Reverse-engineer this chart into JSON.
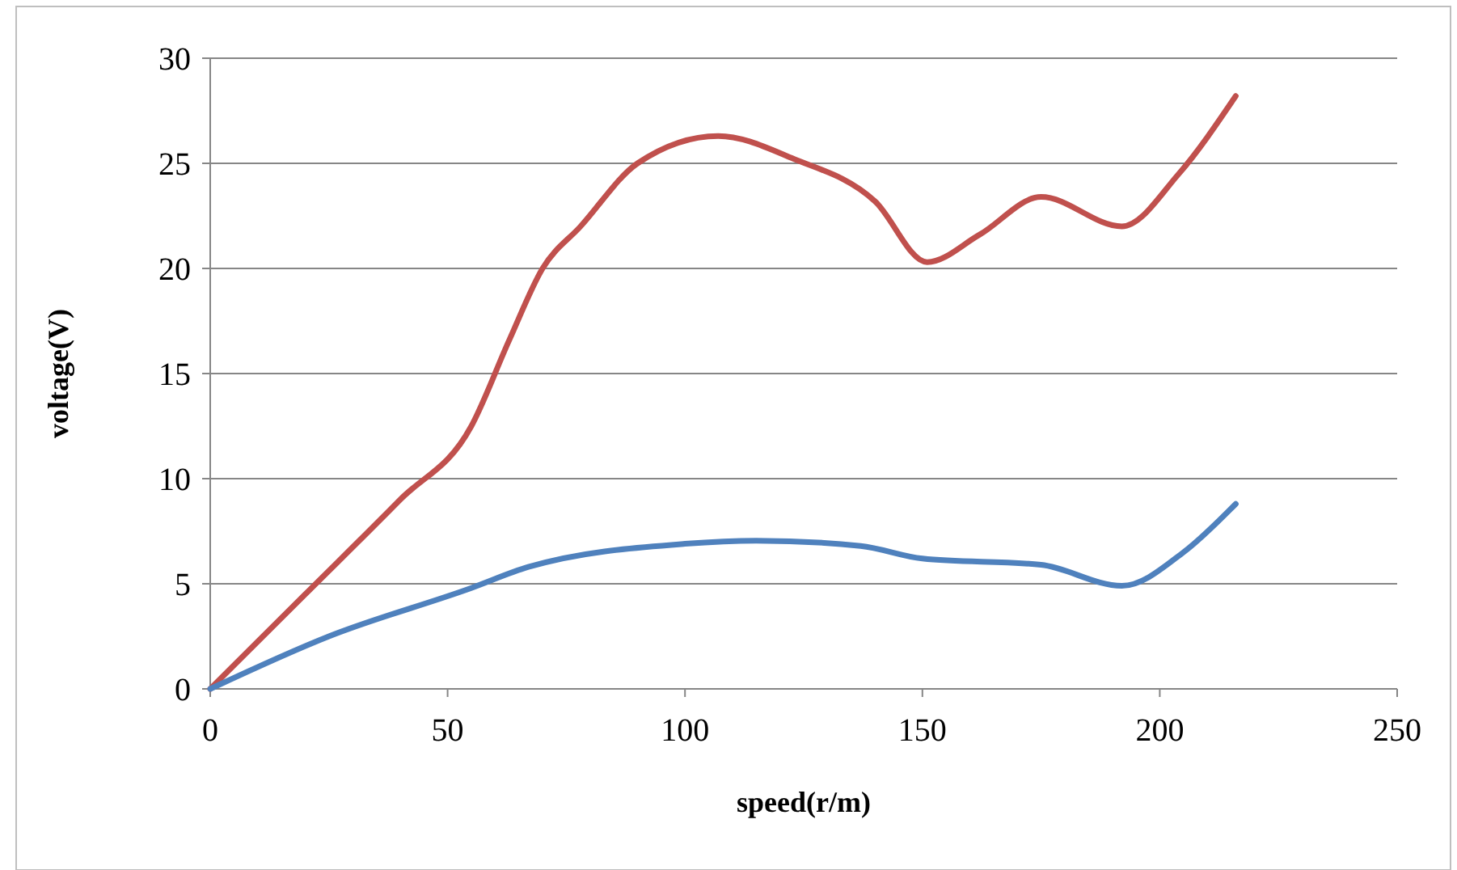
{
  "chart_data": {
    "type": "line",
    "xlabel": "speed(r/m)",
    "ylabel": "voltage(V)",
    "xlim": [
      0,
      250
    ],
    "xticks": [
      0,
      50,
      100,
      150,
      200,
      250
    ],
    "ylim": [
      0,
      30
    ],
    "yticks": [
      0,
      5,
      10,
      15,
      20,
      25,
      30
    ],
    "grid": "y",
    "marker": "none",
    "line_style": "solid",
    "series": [
      {
        "color": "#c0504d",
        "x": [
          0,
          20,
          40,
          55,
          63,
          70,
          78,
          90,
          107,
          123,
          140,
          151,
          162,
          175,
          192,
          204,
          216
        ],
        "values": [
          0,
          4.5,
          9,
          12.5,
          16.6,
          20,
          22,
          25,
          26.3,
          25.2,
          23.2,
          20.3,
          21.6,
          23.4,
          22,
          24.5,
          28.2
        ]
      },
      {
        "color": "#4f81bd",
        "x": [
          0,
          25,
          55,
          67,
          100,
          115,
          137,
          150,
          175,
          192,
          205,
          216
        ],
        "values": [
          0,
          2.5,
          4.8,
          5.8,
          6.9,
          7.05,
          6.8,
          6.2,
          5.9,
          4.9,
          6.5,
          8.8
        ]
      }
    ]
  }
}
